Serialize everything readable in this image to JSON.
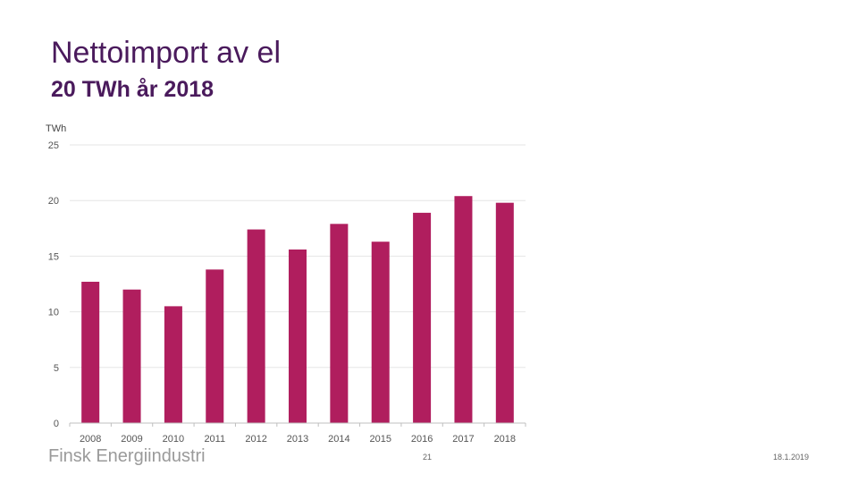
{
  "slide": {
    "title": "Nettoimport av el",
    "subtitle": "20 TWh år 2018",
    "footer_logo": "Finsk Energiindustri",
    "page_number": "21",
    "date": "18.1.2019"
  },
  "colors": {
    "bar": "#b01e5e",
    "title": "#4a1a5c",
    "grid": "#e6e6e6",
    "axis": "#bfbfbf",
    "tick_text": "#555555"
  },
  "chart_data": {
    "type": "bar",
    "title": "",
    "ylabel": "TWh",
    "xlabel": "",
    "categories": [
      "2008",
      "2009",
      "2010",
      "2011",
      "2012",
      "2013",
      "2014",
      "2015",
      "2016",
      "2017",
      "2018"
    ],
    "values": [
      12.7,
      12.0,
      10.5,
      13.8,
      17.4,
      15.6,
      17.9,
      16.3,
      18.9,
      20.4,
      19.8
    ],
    "ylim": [
      0,
      25
    ],
    "yticks": [
      0,
      5,
      10,
      15,
      20,
      25
    ],
    "grid": true
  }
}
